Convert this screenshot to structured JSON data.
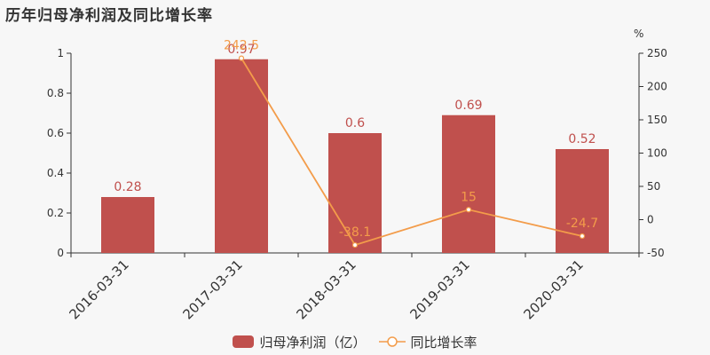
{
  "title": "历年归母净利润及同比增长率",
  "chart_data": {
    "type": "bar",
    "categories": [
      "2016-03-31",
      "2017-03-31",
      "2018-03-31",
      "2019-03-31",
      "2020-03-31"
    ],
    "series": [
      {
        "name": "归母净利润（亿）",
        "type": "bar",
        "axis": "left",
        "values": [
          0.28,
          0.97,
          0.6,
          0.69,
          0.52
        ],
        "labels": [
          "0.28",
          "0.97",
          "0.6",
          "0.69",
          "0.52"
        ],
        "color": "#c0504d"
      },
      {
        "name": "同比增长率",
        "type": "line",
        "axis": "right",
        "values": [
          null,
          242.5,
          -38.1,
          15,
          -24.7
        ],
        "labels": [
          "",
          "242.5",
          "-38.1",
          "15",
          "-24.7"
        ],
        "color": "#f39c4a"
      }
    ],
    "y_left": {
      "min": 0,
      "max": 1,
      "ticks": [
        "0",
        "0.2",
        "0.4",
        "0.6",
        "0.8",
        "1"
      ]
    },
    "y_right": {
      "min": -50,
      "max": 250,
      "unit": "%",
      "ticks": [
        "-50",
        "0",
        "50",
        "100",
        "150",
        "200",
        "250"
      ]
    },
    "legend_position": "bottom-center",
    "grid": false
  }
}
